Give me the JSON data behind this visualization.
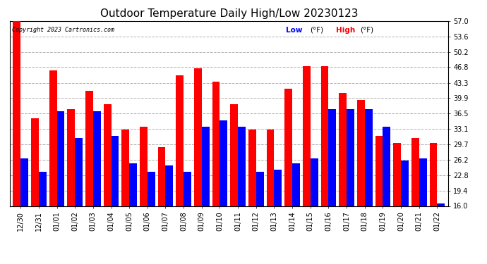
{
  "title": "Outdoor Temperature Daily High/Low 20230123",
  "copyright": "Copyright 2023 Cartronics.com",
  "legend_low": "Low",
  "legend_high": "High",
  "legend_unit": "(°F)",
  "dates": [
    "12/30",
    "12/31",
    "01/01",
    "01/02",
    "01/03",
    "01/04",
    "01/05",
    "01/06",
    "01/07",
    "01/08",
    "01/09",
    "01/10",
    "01/11",
    "01/12",
    "01/13",
    "01/14",
    "01/15",
    "01/16",
    "01/17",
    "01/18",
    "01/19",
    "01/20",
    "01/21",
    "01/22"
  ],
  "highs": [
    57.0,
    35.5,
    46.0,
    37.5,
    41.5,
    38.5,
    33.0,
    33.5,
    29.0,
    45.0,
    46.5,
    43.5,
    38.5,
    33.0,
    33.0,
    42.0,
    47.0,
    47.0,
    41.0,
    39.5,
    31.5,
    30.0,
    31.0,
    30.0
  ],
  "lows": [
    26.5,
    23.5,
    37.0,
    31.0,
    37.0,
    31.5,
    25.5,
    23.5,
    25.0,
    23.5,
    33.5,
    35.0,
    33.5,
    23.5,
    24.0,
    25.5,
    26.5,
    37.5,
    37.5,
    37.5,
    33.5,
    26.0,
    26.5,
    16.5
  ],
  "high_color": "#ff0000",
  "low_color": "#0000ff",
  "bg_color": "#ffffff",
  "grid_color": "#b0b0b0",
  "yticks": [
    16.0,
    19.4,
    22.8,
    26.2,
    29.7,
    33.1,
    36.5,
    39.9,
    43.3,
    46.8,
    50.2,
    53.6,
    57.0
  ],
  "ymin": 16.0,
  "ymax": 57.0,
  "ybaseline": 16.0,
  "title_fontsize": 11,
  "tick_fontsize": 7,
  "bar_width": 0.42,
  "bar_gap": 0.02
}
